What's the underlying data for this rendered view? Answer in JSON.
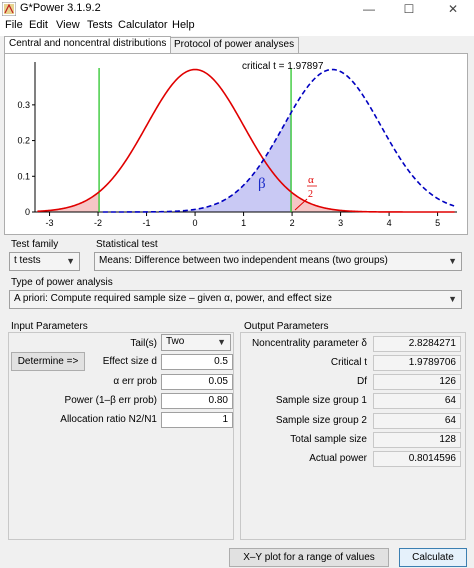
{
  "window": {
    "title": "G*Power 3.1.9.2",
    "minimize": "—",
    "maximize": "☐",
    "close": "✕"
  },
  "menu": [
    "File",
    "Edit",
    "View",
    "Tests",
    "Calculator",
    "Help"
  ],
  "tabs": [
    {
      "label": "Central and noncentral distributions",
      "active": true
    },
    {
      "label": "Protocol of power analyses",
      "active": false
    }
  ],
  "chart_data": {
    "type": "line",
    "annotation_critical": "critical t = 1.97897",
    "beta_label": "β",
    "alpha_num": "α",
    "alpha_den": "2",
    "xlim": [
      -3.3,
      5.4
    ],
    "ylim": [
      0,
      0.42
    ],
    "x_ticks": [
      "-3",
      "-2",
      "-1",
      "0",
      "1",
      "2",
      "3",
      "4",
      "5"
    ],
    "y_ticks": [
      "0",
      "0.1",
      "0.2",
      "0.3"
    ],
    "critical_values": [
      -1.97897,
      1.97897
    ],
    "series": [
      {
        "distribution": "central t",
        "df": 126,
        "center": 0,
        "color": "#e00000",
        "style": "solid"
      },
      {
        "distribution": "noncentral t",
        "df": 126,
        "noncentrality": 2.8284271,
        "color": "#0000c0",
        "style": "dashed"
      }
    ],
    "colors": {
      "alpha_fill": "#f6c6c6",
      "beta_fill": "#c9c9f4",
      "critical_line": "#19c119"
    }
  },
  "test_family": {
    "label": "Test family",
    "value": "t tests"
  },
  "statistical_test": {
    "label": "Statistical test",
    "value": "Means: Difference between two independent means (two groups)"
  },
  "analysis_type": {
    "label": "Type of power analysis",
    "value": "A priori: Compute required sample size – given α, power, and effect size"
  },
  "input_parameters": {
    "title": "Input Parameters",
    "determine_label": "Determine =>",
    "tails_label": "Tail(s)",
    "tails_value": "Two",
    "effect_label": "Effect size d",
    "effect_value": "0.5",
    "alpha_label": "α err prob",
    "alpha_value": "0.05",
    "power_label": "Power (1–β err prob)",
    "power_value": "0.80",
    "ratio_label": "Allocation ratio N2/N1",
    "ratio_value": "1"
  },
  "output_parameters": {
    "title": "Output Parameters",
    "rows": [
      {
        "label": "Noncentrality parameter δ",
        "value": "2.8284271"
      },
      {
        "label": "Critical t",
        "value": "1.9789706"
      },
      {
        "label": "Df",
        "value": "126"
      },
      {
        "label": "Sample size group 1",
        "value": "64"
      },
      {
        "label": "Sample size group 2",
        "value": "64"
      },
      {
        "label": "Total sample size",
        "value": "128"
      },
      {
        "label": "Actual power",
        "value": "0.8014596"
      }
    ]
  },
  "buttons": {
    "xy_plot": "X–Y plot for a range of values",
    "calculate": "Calculate"
  }
}
